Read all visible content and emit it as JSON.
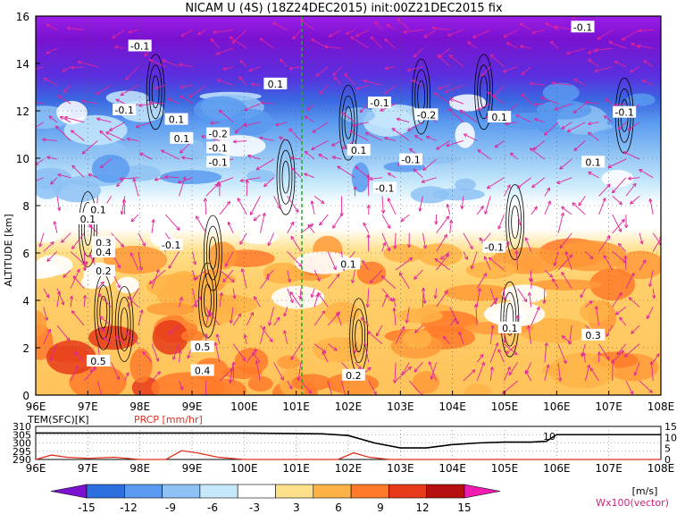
{
  "title": "NICAM U (4S) (18Z24DEC2015) init:00Z21DEC2015 fix",
  "main_panel": {
    "ylabel": "ALTITUDE [km]",
    "y_ticks": [
      "0",
      "2",
      "4",
      "6",
      "8",
      "10",
      "12",
      "14",
      "16"
    ],
    "x_ticks": [
      "96E",
      "97E",
      "98E",
      "99E",
      "100E",
      "101E",
      "102E",
      "103E",
      "104E",
      "105E",
      "106E",
      "107E",
      "108E"
    ],
    "contour_labels": [
      "-0.1",
      "0.1",
      "-0.2",
      "0.2",
      "0.3",
      "0.4",
      "0.5"
    ]
  },
  "bottom_panel": {
    "left_label": "TEM(SFC)[K]",
    "right_label": "PRCP [mm/hr]",
    "left_ticks": [
      "310",
      "305",
      "300",
      "295",
      "290"
    ],
    "right_ticks": [
      "15",
      "10",
      "5",
      "0"
    ],
    "annotation": "10",
    "x_ticks": [
      "96E",
      "97E",
      "98E",
      "99E",
      "100E",
      "101E",
      "102E",
      "103E",
      "104E",
      "105E",
      "106E",
      "107E",
      "108E"
    ]
  },
  "colorbar": {
    "labels": [
      "-15",
      "-12",
      "-9",
      "-6",
      "-3",
      "3",
      "6",
      "9",
      "12",
      "15"
    ],
    "colors": [
      "#7a12d0",
      "#2e6fe0",
      "#5a9af0",
      "#8ec2f4",
      "#c6e8fb",
      "#ffffff",
      "#ffe08a",
      "#ffb347",
      "#ff7a2a",
      "#e83a1a",
      "#b50f0f",
      "#f01bb0"
    ],
    "unit": "[m/s]",
    "vector_label": "Wx100(vector)"
  },
  "chart_data": [
    {
      "type": "heatmap",
      "title": "NICAM U (4S) (18Z24DEC2015) init:00Z21DEC2015 fix",
      "xlabel": "",
      "ylabel": "ALTITUDE [km]",
      "xlim": [
        96,
        108
      ],
      "ylim": [
        0,
        16
      ],
      "grid": true,
      "marker_line_lon": 101,
      "bands": [
        {
          "altitude": [
            13,
            16
          ],
          "wind_ms": -15
        },
        {
          "altitude": [
            11,
            13
          ],
          "wind_ms": -12
        },
        {
          "altitude": [
            9,
            11
          ],
          "wind_ms": -3
        },
        {
          "altitude": [
            7.5,
            9
          ],
          "wind_ms": 0
        },
        {
          "altitude": [
            0,
            7.5
          ],
          "wind_ms": 6
        }
      ]
    },
    {
      "type": "line",
      "xlim": [
        96,
        108
      ],
      "series": [
        {
          "name": "TEM(SFC)[K]",
          "ylim": [
            290,
            310
          ],
          "x": [
            96,
            98,
            100,
            101.5,
            102,
            102.5,
            103,
            103.5,
            104,
            104.5,
            105,
            105.5,
            105.8,
            106,
            107,
            108
          ],
          "values": [
            306,
            306,
            306,
            305.5,
            304.5,
            300,
            297,
            297,
            299,
            300,
            300.5,
            300.5,
            301,
            305,
            305,
            305
          ]
        },
        {
          "name": "PRCP [mm/hr]",
          "ylim": [
            0,
            15
          ],
          "x": [
            96,
            96.3,
            96.6,
            97,
            97.5,
            98,
            98.5,
            98.8,
            99.1,
            99.5,
            100,
            101,
            101.8,
            102.1,
            102.4,
            102.8,
            103,
            108
          ],
          "values": [
            0,
            2,
            1,
            0.5,
            1,
            0,
            0,
            4,
            3,
            1,
            0,
            0,
            0,
            3,
            1,
            0,
            0,
            0
          ]
        }
      ]
    }
  ]
}
